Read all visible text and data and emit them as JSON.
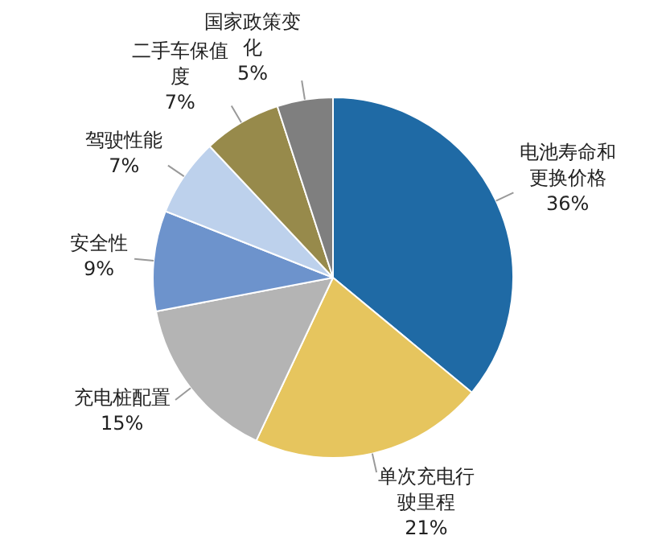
{
  "chart_data": {
    "type": "pie",
    "categories": [
      "电池寿命和更换价格",
      "单次充电行驶里程",
      "充电桩配置",
      "安全性",
      "驾驶性能",
      "二手车保值度",
      "国家政策变化"
    ],
    "values": [
      36,
      21,
      15,
      9,
      7,
      7,
      5
    ],
    "value_labels": [
      "36%",
      "21%",
      "15%",
      "9%",
      "7%",
      "7%",
      "5%"
    ],
    "colors": [
      "#1f6aa5",
      "#e6c55e",
      "#b4b4b4",
      "#6d93cc",
      "#bdd1ec",
      "#978a4b",
      "#7f7f7f"
    ]
  }
}
